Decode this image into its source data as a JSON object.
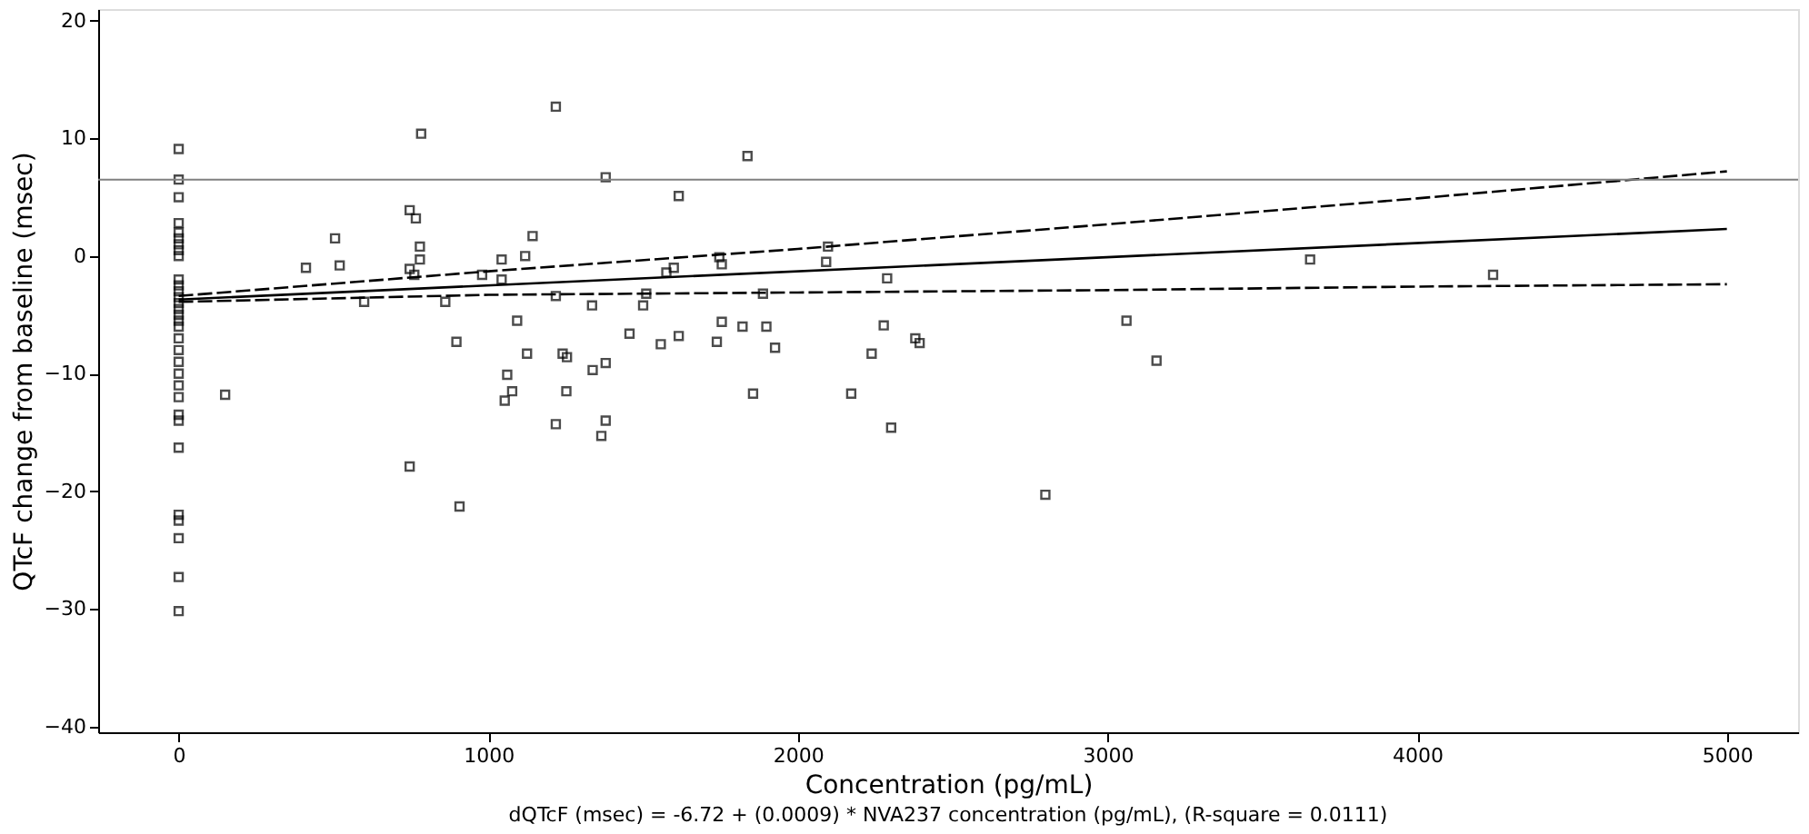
{
  "chart_data": {
    "type": "scatter",
    "xlabel": "Concentration (pg/mL)",
    "ylabel": "QTcF change from baseline (msec)",
    "annotations": [
      "dQTcF (msec) = -6.72 + (0.0009) * NVA237 concentration (pg/mL),  (R-square = 0.0111)"
    ],
    "xlim": [
      -260,
      5230
    ],
    "ylim": [
      -40.5,
      21
    ],
    "xticks": [
      0,
      1000,
      2000,
      3000,
      4000,
      5000
    ],
    "yticks": [
      -40,
      -30,
      -20,
      -10,
      0,
      10,
      20
    ],
    "grid": false,
    "ref_lines": [
      {
        "axis": "y",
        "value": 6.5,
        "color": "#808080"
      }
    ],
    "series": [
      {
        "color": "#000000",
        "marker": "square",
        "x": [
          0,
          0,
          0,
          0,
          0,
          0,
          0,
          0,
          0,
          0,
          0,
          0,
          0,
          0,
          0,
          0,
          0,
          0,
          0,
          0,
          0,
          0,
          0,
          0,
          0,
          0,
          0,
          0,
          0,
          0,
          0,
          0,
          150,
          411,
          505,
          520,
          599,
          746,
          766,
          779,
          779,
          746,
          761,
          783,
          746,
          861,
          897,
          907,
          980,
          1043,
          1043,
          1093,
          1119,
          1143,
          1125,
          1061,
          1053,
          1077,
          1218,
          1218,
          1240,
          1252,
          1218,
          1379,
          1615,
          1837,
          1335,
          1500,
          1510,
          1575,
          1599,
          1746,
          1754,
          1887,
          2097,
          2091,
          2288,
          1456,
          1557,
          1615,
          1738,
          1754,
          1821,
          1898,
          1926,
          2277,
          2238,
          2379,
          2393,
          1254,
          1337,
          1379,
          1855,
          2172,
          1379,
          1365,
          2301,
          2799,
          3061,
          3158,
          3654,
          4245
        ],
        "values": [
          9.1,
          6.5,
          5,
          2.8,
          2,
          1.5,
          1,
          0.5,
          0,
          -2,
          -2.5,
          -3,
          -3.5,
          -4,
          -4.5,
          -5,
          -5.5,
          -6,
          -7,
          -8,
          -9,
          -10,
          -11,
          -12,
          -13.5,
          -14,
          -16.3,
          -22,
          -22.5,
          -24,
          -27.3,
          -30.2,
          -11.8,
          -1.0,
          1.5,
          -0.8,
          -3.9,
          3.9,
          3.2,
          0.8,
          -0.3,
          -1.1,
          -1.6,
          10.4,
          -17.9,
          -3.9,
          -7.3,
          -21.3,
          -1.6,
          -0.3,
          -2.0,
          -5.5,
          0,
          1.7,
          -8.3,
          -10.1,
          -12.3,
          -11.5,
          12.7,
          -3.4,
          -8.3,
          -11.5,
          -14.3,
          6.7,
          5.1,
          8.5,
          -4.2,
          -4.2,
          -3.2,
          -1.4,
          -1.0,
          -0.1,
          -0.7,
          -3.2,
          0.8,
          -0.5,
          -1.9,
          -6.6,
          -7.5,
          -6.8,
          -7.3,
          -5.6,
          -6.0,
          -6.0,
          -7.8,
          -5.9,
          -8.3,
          -7.0,
          -7.4,
          -8.6,
          -9.7,
          -9.1,
          -11.7,
          -11.7,
          -14.0,
          -15.3,
          -14.6,
          -20.3,
          -5.5,
          -8.9,
          -0.3,
          -1.6
        ]
      },
      {
        "type": "line",
        "color": "#000000",
        "line_style": "solid",
        "marker": "none",
        "x": [
          0,
          5000
        ],
        "values": [
          -3.7,
          2.3
        ]
      },
      {
        "type": "line",
        "color": "#000000",
        "line_style": "dashed",
        "marker": "none",
        "x": [
          0,
          1000,
          2000,
          3000,
          4000,
          5000
        ],
        "values": [
          -3.4,
          -1.3,
          0.6,
          2.7,
          4.9,
          7.2
        ]
      },
      {
        "type": "line",
        "color": "#000000",
        "line_style": "dashed",
        "marker": "none",
        "x": [
          0,
          1000,
          2000,
          3000,
          4000,
          5000
        ],
        "values": [
          -3.9,
          -3.3,
          -3.1,
          -2.9,
          -2.6,
          -2.4
        ]
      }
    ]
  }
}
